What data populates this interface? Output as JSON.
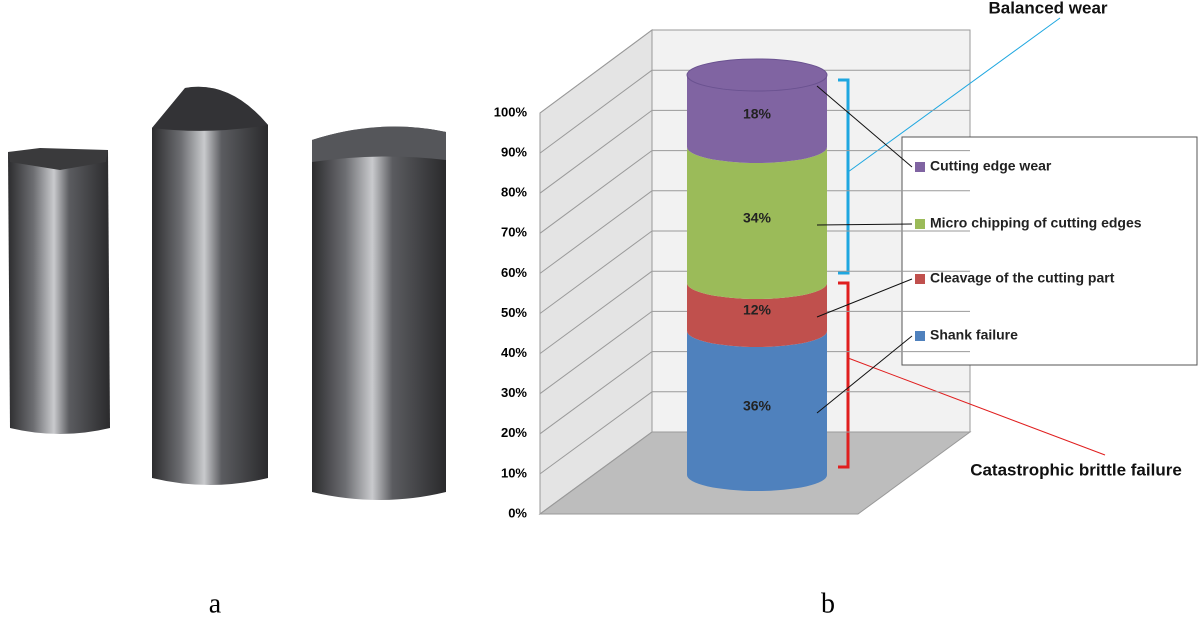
{
  "panels": [
    "a",
    "b"
  ],
  "chart_data": {
    "type": "stacked_bar_3d",
    "categories": [
      null
    ],
    "series": [
      {
        "name": "Shank failure",
        "color": "#4f81bd",
        "values": [
          36
        ],
        "value_labels": [
          "36%"
        ]
      },
      {
        "name": "Cleavage of the cutting part",
        "color": "#c0504d",
        "values": [
          12
        ],
        "value_labels": [
          "12%"
        ]
      },
      {
        "name": "Micro chipping of cutting edges",
        "color": "#9bbb59",
        "values": [
          34
        ],
        "value_labels": [
          "34%"
        ]
      },
      {
        "name": "Cutting edge wear",
        "color": "#8064a2",
        "values": [
          18
        ],
        "value_labels": [
          "18%"
        ]
      }
    ],
    "ylim": [
      0,
      100
    ],
    "yticks": [
      {
        "value": 0,
        "label": "0%"
      },
      {
        "value": 10,
        "label": "10%"
      },
      {
        "value": 20,
        "label": "20%"
      },
      {
        "value": 30,
        "label": "30%"
      },
      {
        "value": 40,
        "label": "40%"
      },
      {
        "value": 50,
        "label": "50%"
      },
      {
        "value": 60,
        "label": "60%"
      },
      {
        "value": 70,
        "label": "70%"
      },
      {
        "value": 80,
        "label": "80%"
      },
      {
        "value": 90,
        "label": "90%"
      },
      {
        "value": 100,
        "label": "100%"
      }
    ],
    "grid": true,
    "annotations": [
      "Balanced wear",
      "Catastrophic brittle failure"
    ]
  }
}
